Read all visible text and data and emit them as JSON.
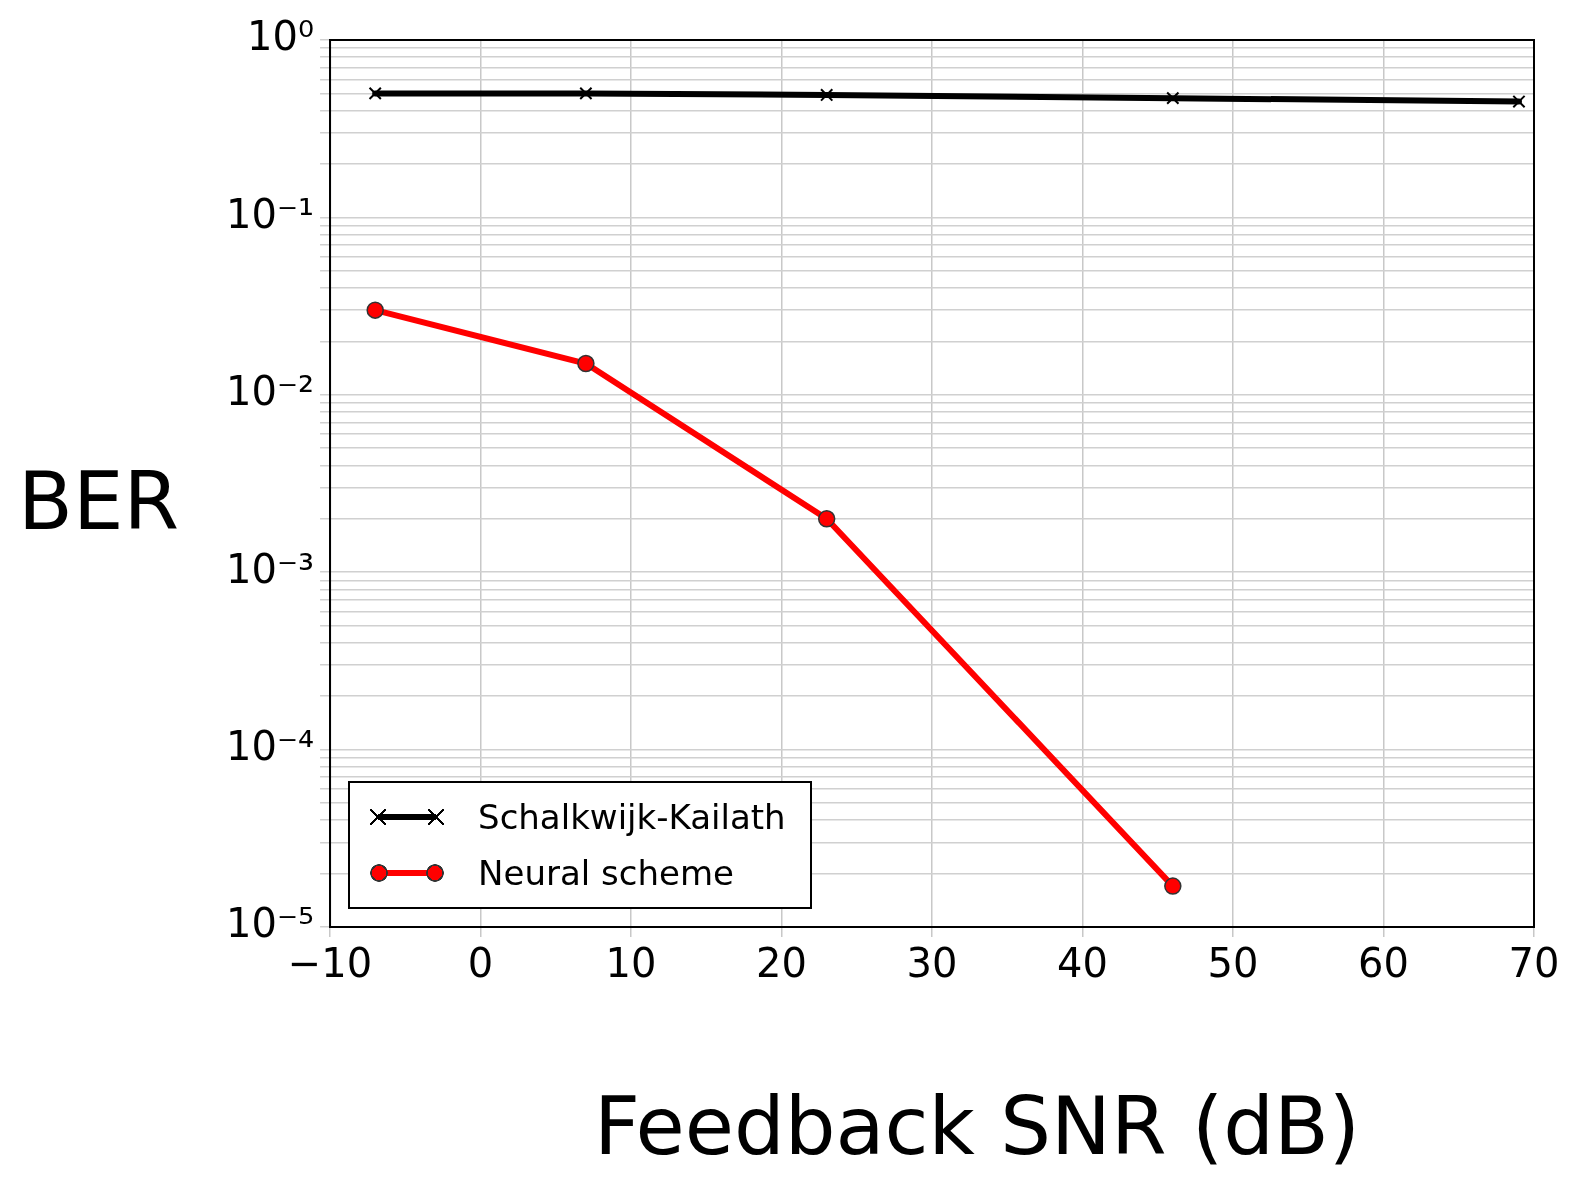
{
  "chart_data": {
    "type": "line",
    "xlabel": "Feedback SNR (dB)",
    "ylabel": "BER",
    "log": "y",
    "grid": true,
    "legend": "bottom left",
    "line_style": "solid",
    "xlim": [
      -10,
      70
    ],
    "xticks": [
      {
        "value": -10,
        "label": "−10"
      },
      0,
      10,
      20,
      30,
      40,
      50,
      60,
      70
    ],
    "ylim": [
      1e-05,
      1
    ],
    "yticks": [
      {
        "value": 1e-05,
        "label": "10⁻⁵"
      },
      {
        "value": 2e-05,
        "label": null
      },
      {
        "value": 3e-05,
        "label": null
      },
      {
        "value": 4e-05,
        "label": null
      },
      {
        "value": 5e-05,
        "label": null
      },
      {
        "value": 6e-05,
        "label": null
      },
      {
        "value": 7e-05,
        "label": null
      },
      {
        "value": 8e-05,
        "label": null
      },
      {
        "value": 9e-05,
        "label": null
      },
      {
        "value": 0.0001,
        "label": "10⁻⁴"
      },
      {
        "value": 0.0002,
        "label": null
      },
      {
        "value": 0.0003,
        "label": null
      },
      {
        "value": 0.0004,
        "label": null
      },
      {
        "value": 0.0005,
        "label": null
      },
      {
        "value": 0.0006,
        "label": null
      },
      {
        "value": 0.0007,
        "label": null
      },
      {
        "value": 0.0008,
        "label": null
      },
      {
        "value": 0.0009,
        "label": null
      },
      {
        "value": 0.001,
        "label": "10⁻³"
      },
      {
        "value": 0.002,
        "label": null
      },
      {
        "value": 0.003,
        "label": null
      },
      {
        "value": 0.004,
        "label": null
      },
      {
        "value": 0.005,
        "label": null
      },
      {
        "value": 0.006,
        "label": null
      },
      {
        "value": 0.007,
        "label": null
      },
      {
        "value": 0.008,
        "label": null
      },
      {
        "value": 0.009,
        "label": null
      },
      {
        "value": 0.01,
        "label": "10⁻²"
      },
      {
        "value": 0.02,
        "label": null
      },
      {
        "value": 0.03,
        "label": null
      },
      {
        "value": 0.04,
        "label": null
      },
      {
        "value": 0.05,
        "label": null
      },
      {
        "value": 0.06,
        "label": null
      },
      {
        "value": 0.07,
        "label": null
      },
      {
        "value": 0.08,
        "label": null
      },
      {
        "value": 0.09,
        "label": null
      },
      {
        "value": 0.1,
        "label": "10⁻¹"
      },
      {
        "value": 0.2,
        "label": null
      },
      {
        "value": 0.3,
        "label": null
      },
      {
        "value": 0.4,
        "label": null
      },
      {
        "value": 0.5,
        "label": null
      },
      {
        "value": 0.6,
        "label": null
      },
      {
        "value": 0.7,
        "label": null
      },
      {
        "value": 0.8,
        "label": null
      },
      {
        "value": 0.9,
        "label": null
      },
      {
        "value": 1,
        "label": "10⁰"
      }
    ],
    "series": [
      {
        "name": "Schalkwijk-Kailath",
        "color": "#000000",
        "marker": "cross",
        "x": [
          -7,
          7,
          23,
          46,
          69
        ],
        "values": [
          0.5,
          0.5,
          0.49,
          0.47,
          0.45
        ]
      },
      {
        "name": "Neural scheme",
        "color": "#ff0000",
        "marker": "circle",
        "x": [
          -7,
          7,
          23,
          46
        ],
        "values": [
          0.03,
          0.015,
          0.002,
          1.7e-05
        ]
      }
    ]
  }
}
